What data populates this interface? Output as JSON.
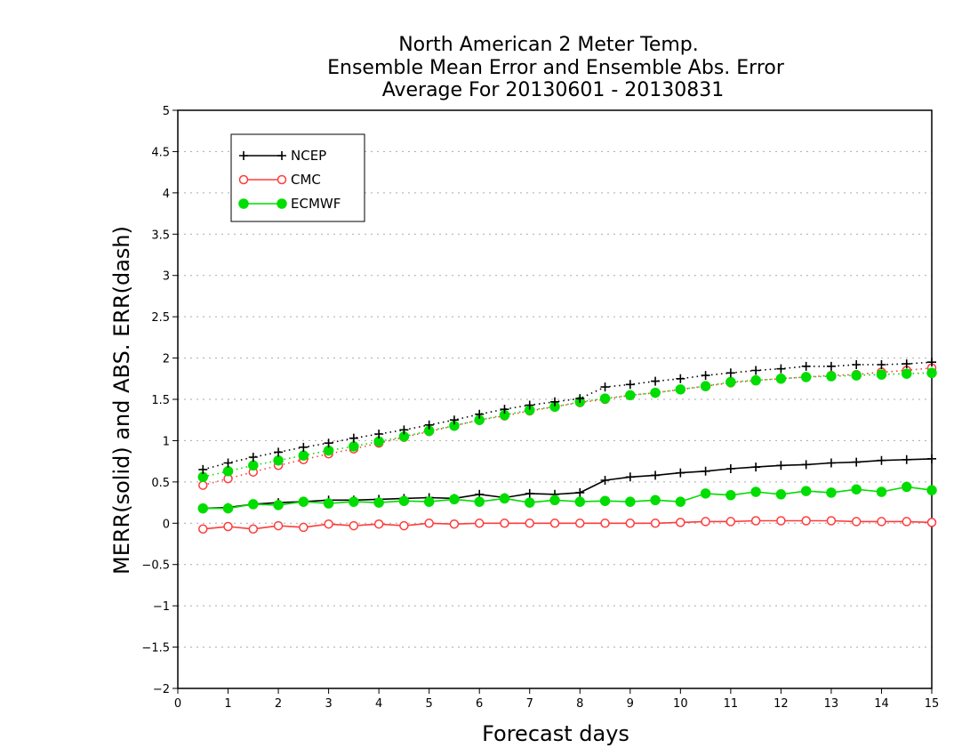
{
  "chart_data": {
    "type": "line",
    "title": [
      "North American 2 Meter Temp.",
      "Ensemble Mean Error and Ensemble Abs. Error",
      "Average For 20130601 - 20130831"
    ],
    "xlabel": "Forecast days",
    "ylabel": "MERR(solid) and ABS. ERR(dash)",
    "xlim": [
      0,
      15
    ],
    "ylim": [
      -2,
      5
    ],
    "xticks": [
      0,
      1,
      2,
      3,
      4,
      5,
      6,
      7,
      8,
      9,
      10,
      11,
      12,
      13,
      14,
      15
    ],
    "yticks": [
      -2,
      -1.5,
      -1,
      -0.5,
      0,
      0.5,
      1,
      1.5,
      2,
      2.5,
      3,
      3.5,
      4,
      4.5,
      5
    ],
    "grid": "horizontal dotted",
    "legend_position": "top-left",
    "x": [
      0.5,
      1,
      1.5,
      2,
      2.5,
      3,
      3.5,
      4,
      4.5,
      5,
      5.5,
      6,
      6.5,
      7,
      7.5,
      8,
      8.5,
      9,
      9.5,
      10,
      10.5,
      11,
      11.5,
      12,
      12.5,
      13,
      13.5,
      14,
      14.5,
      15
    ],
    "series": [
      {
        "name": "NCEP",
        "color": "#000000",
        "marker": "plus",
        "filled": false,
        "style": "solid",
        "values": [
          0.18,
          0.19,
          0.23,
          0.25,
          0.26,
          0.28,
          0.28,
          0.29,
          0.3,
          0.31,
          0.3,
          0.35,
          0.31,
          0.36,
          0.35,
          0.37,
          0.52,
          0.56,
          0.58,
          0.61,
          0.63,
          0.66,
          0.68,
          0.7,
          0.71,
          0.73,
          0.74,
          0.76,
          0.77,
          0.78
        ]
      },
      {
        "name": "NCEP",
        "color": "#000000",
        "marker": "plus",
        "filled": false,
        "style": "dotted",
        "values": [
          0.65,
          0.73,
          0.8,
          0.86,
          0.92,
          0.97,
          1.03,
          1.08,
          1.13,
          1.19,
          1.25,
          1.32,
          1.38,
          1.43,
          1.47,
          1.51,
          1.65,
          1.68,
          1.72,
          1.75,
          1.79,
          1.82,
          1.85,
          1.87,
          1.9,
          1.9,
          1.92,
          1.92,
          1.93,
          1.95
        ]
      },
      {
        "name": "CMC",
        "color": "#ff3b3b",
        "marker": "circle",
        "filled": false,
        "style": "solid",
        "values": [
          -0.07,
          -0.04,
          -0.07,
          -0.03,
          -0.05,
          -0.01,
          -0.03,
          -0.01,
          -0.03,
          0.0,
          -0.01,
          0.0,
          0.0,
          0.0,
          0.0,
          0.0,
          0.0,
          0.0,
          0.0,
          0.01,
          0.02,
          0.02,
          0.03,
          0.03,
          0.03,
          0.03,
          0.02,
          0.02,
          0.02,
          0.01
        ]
      },
      {
        "name": "CMC",
        "color": "#ff3b3b",
        "marker": "circle",
        "filled": false,
        "style": "dotted",
        "values": [
          0.46,
          0.54,
          0.62,
          0.7,
          0.77,
          0.84,
          0.9,
          0.97,
          1.04,
          1.11,
          1.18,
          1.25,
          1.3,
          1.36,
          1.41,
          1.46,
          1.5,
          1.55,
          1.58,
          1.62,
          1.66,
          1.7,
          1.73,
          1.75,
          1.77,
          1.79,
          1.8,
          1.83,
          1.85,
          1.88
        ]
      },
      {
        "name": "ECMWF",
        "color": "#00dd00",
        "marker": "circle",
        "filled": true,
        "style": "solid",
        "values": [
          0.18,
          0.18,
          0.23,
          0.22,
          0.26,
          0.24,
          0.26,
          0.25,
          0.27,
          0.26,
          0.29,
          0.26,
          0.3,
          0.25,
          0.28,
          0.26,
          0.27,
          0.26,
          0.28,
          0.26,
          0.36,
          0.34,
          0.38,
          0.35,
          0.39,
          0.37,
          0.41,
          0.38,
          0.44,
          0.4
        ]
      },
      {
        "name": "ECMWF",
        "color": "#00dd00",
        "marker": "circle",
        "filled": true,
        "style": "dotted",
        "values": [
          0.56,
          0.63,
          0.7,
          0.76,
          0.82,
          0.88,
          0.93,
          0.99,
          1.05,
          1.12,
          1.18,
          1.25,
          1.31,
          1.37,
          1.41,
          1.47,
          1.51,
          1.55,
          1.58,
          1.62,
          1.66,
          1.71,
          1.73,
          1.75,
          1.77,
          1.78,
          1.79,
          1.8,
          1.81,
          1.82
        ]
      }
    ],
    "legend": [
      {
        "name": "NCEP",
        "color": "#000000",
        "marker": "plus",
        "filled": false
      },
      {
        "name": "CMC",
        "color": "#ff3b3b",
        "marker": "circle",
        "filled": false
      },
      {
        "name": "ECMWF",
        "color": "#00dd00",
        "marker": "circle",
        "filled": true
      }
    ]
  }
}
